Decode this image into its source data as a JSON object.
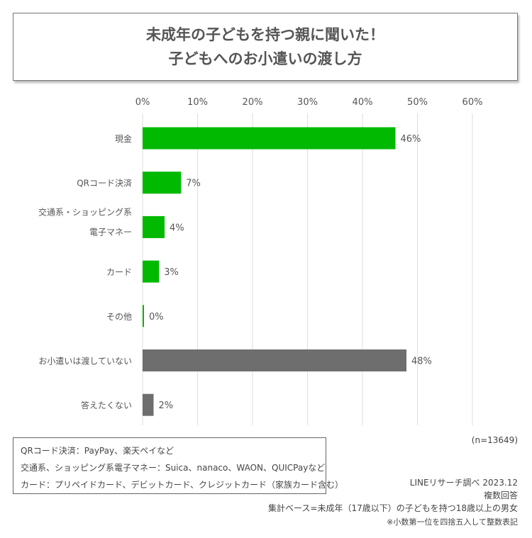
{
  "title_lines": [
    "未成年の子どもを持つ親に聞いた！",
    "子どもへのお小遣いの渡し方"
  ],
  "chart_data": {
    "type": "bar",
    "orientation": "horizontal",
    "categories": [
      "現金",
      "QRコード決済",
      "交通系・ショッピング系\n電子マネー",
      "カード",
      "その他",
      "お小遣いは渡していない",
      "答えたくない"
    ],
    "category_lines": [
      [
        "現金"
      ],
      [
        "QRコード決済"
      ],
      [
        "交通系・ショッピング系",
        "電子マネー"
      ],
      [
        "カード"
      ],
      [
        "その他"
      ],
      [
        "お小遣いは渡していない"
      ],
      [
        "答えたくない"
      ]
    ],
    "values": [
      46,
      7,
      4,
      3,
      0,
      48,
      2
    ],
    "data_labels": [
      "46%",
      "7%",
      "4%",
      "3%",
      "0%",
      "48%",
      "2%"
    ],
    "bar_colors": [
      "#00b900",
      "#00b900",
      "#00b900",
      "#00b900",
      "#00b900",
      "#6e6e6e",
      "#6e6e6e"
    ],
    "xlim": [
      0,
      60
    ],
    "xticks": [
      "0%",
      "10%",
      "20%",
      "30%",
      "40%",
      "50%",
      "60%"
    ],
    "grid": true,
    "xaxis_position": "top"
  },
  "notes": [
    "QRコード決済：PayPay、楽天ペイなど",
    "交通系、ショッピング系電子マネー：Suica、nanaco、WAON、QUICPayなど",
    "カード：プリペイドカード、デビットカード、クレジットカード（家族カード含む）"
  ],
  "sample_size": "(n=13649)",
  "source": "LINEリサーチ調べ 2023.12",
  "answer_type": "複数回答",
  "base": "集計ベース=未成年（17歳以下）の子どもを持つ18歳以上の男女",
  "rounding_note": "※小数第一位を四捨五入して整数表記"
}
